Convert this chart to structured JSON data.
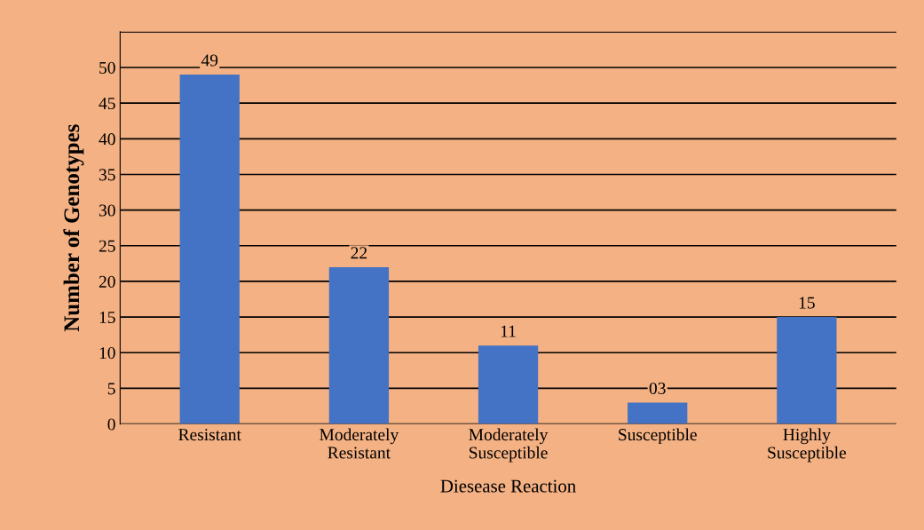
{
  "chart_data": {
    "type": "bar",
    "xlabel": "Diesease Reaction",
    "ylabel": "Number of Genotypes",
    "categories": [
      "Resistant",
      "Moderately\nResistant",
      "Moderately\nSusceptible",
      "Susceptible",
      "Highly\nSusceptible"
    ],
    "values": [
      49,
      22,
      11,
      3,
      15
    ],
    "value_labels": [
      "49",
      "22",
      "11",
      "03",
      "15"
    ],
    "color": "#4472c4",
    "ylim": [
      0,
      55
    ],
    "yticks": [
      0,
      5,
      10,
      15,
      20,
      25,
      30,
      35,
      40,
      45,
      50,
      {
        "value": 55,
        "label": null
      }
    ],
    "grid": "y"
  }
}
